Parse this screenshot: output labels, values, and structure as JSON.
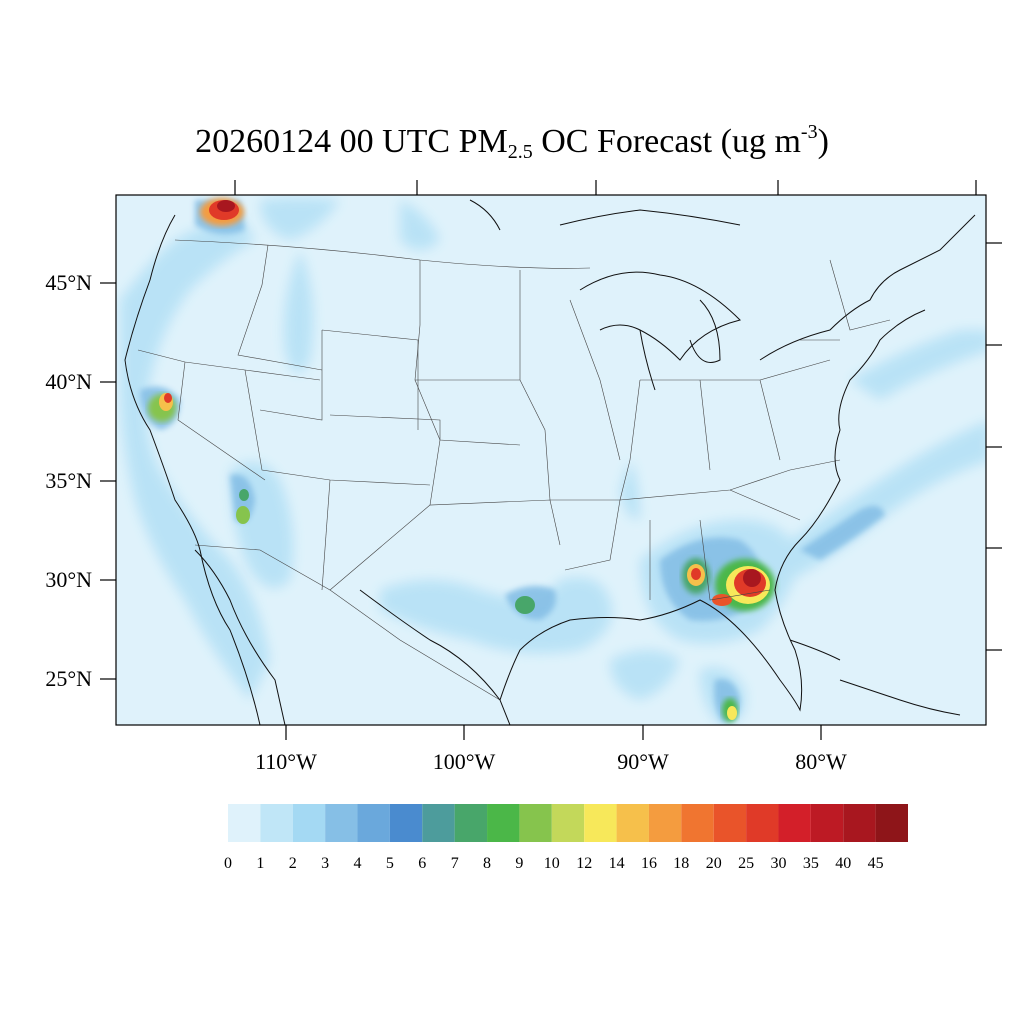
{
  "title": {
    "main": "20260124 00 UTC PM",
    "subscript": "2.5",
    "rest": " OC Forecast (ug m",
    "superscript": "-3",
    "close": ")"
  },
  "axes": {
    "lat_labels": [
      "45°N",
      "40°N",
      "35°N",
      "30°N",
      "25°N"
    ],
    "lon_labels": [
      "110°W",
      "100°W",
      "90°W",
      "80°W"
    ]
  },
  "colorbar": {
    "levels": [
      "0",
      "1",
      "2",
      "3",
      "4",
      "5",
      "6",
      "7",
      "8",
      "9",
      "10",
      "12",
      "14",
      "16",
      "18",
      "20",
      "25",
      "30",
      "35",
      "40",
      "45"
    ],
    "colors": [
      "#dff2fb",
      "#c0e6f7",
      "#a4d9f3",
      "#86bfe6",
      "#6aa8dc",
      "#4a8bcf",
      "#4d9c9c",
      "#48a66a",
      "#4bb748",
      "#86c44d",
      "#c3d85a",
      "#f7e85a",
      "#f6c04b",
      "#f49c3f",
      "#f07530",
      "#e9542a",
      "#e03a28",
      "#d31f29",
      "#bd1a24",
      "#a8171f",
      "#8e1519"
    ]
  },
  "map": {
    "background_color": "#dff2fb",
    "hotspots": [
      "Northern Washington / British Columbia",
      "Northern California",
      "Southern Georgia / North Florida",
      "Southern Alabama",
      "Gulf of Mexico south of Florida"
    ]
  }
}
